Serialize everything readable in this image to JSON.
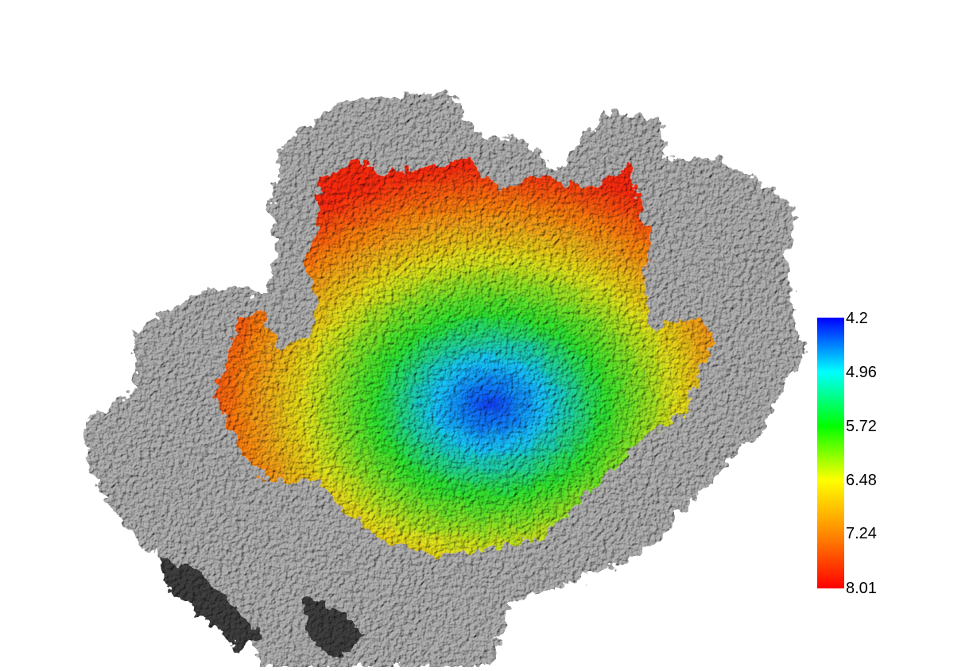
{
  "viewer": {
    "background_color": "#ffffff",
    "surface_color": "#b4b4b4",
    "shadow_color": "#3f3f3f"
  },
  "color_key": {
    "colors": [
      "#0000ff",
      "#00ffff",
      "#00ff00",
      "#ffff00",
      "#ff8800",
      "#ff0000"
    ],
    "labels": [
      "4.2",
      "4.96",
      "5.72",
      "6.48",
      "7.24",
      "8.01"
    ]
  }
}
